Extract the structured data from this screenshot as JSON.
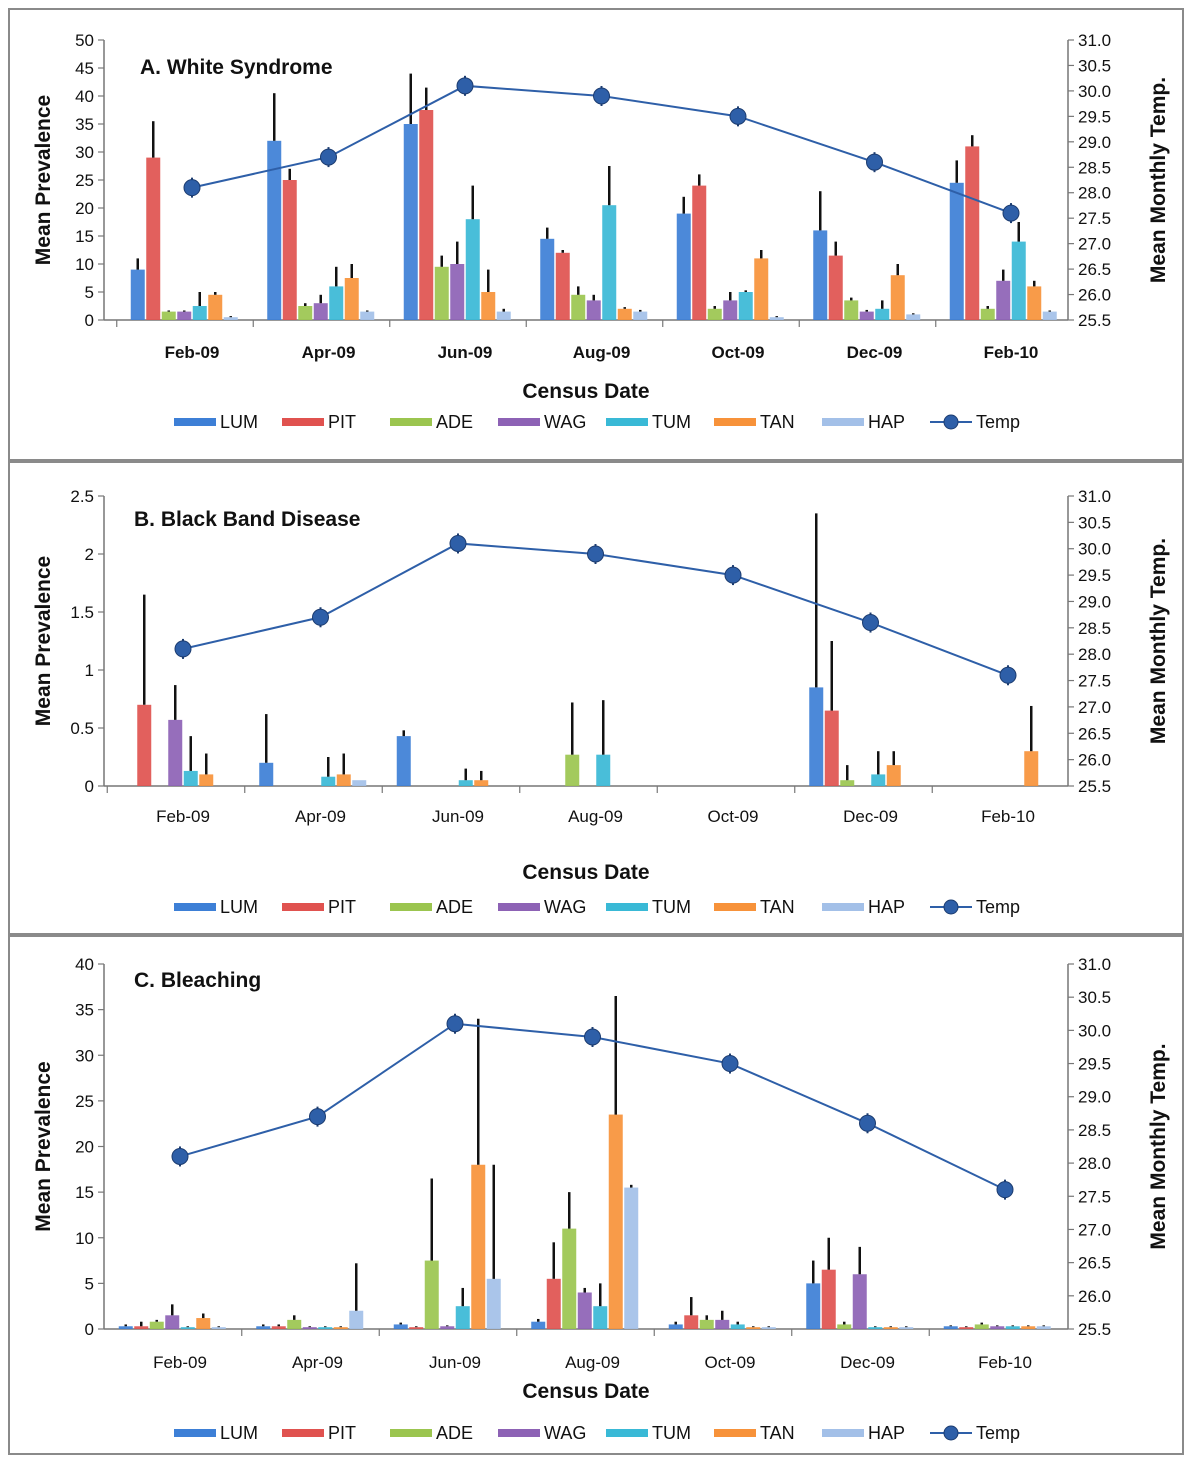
{
  "chart_data": [
    {
      "type": "bar",
      "title": "A. White Syndrome",
      "xlabel": "Census Date",
      "ylabel": "Mean Prevalence",
      "y2label": "Mean Monthly Temp.",
      "ylim": [
        0,
        50
      ],
      "yticks": [
        0,
        5,
        10,
        15,
        20,
        25,
        30,
        35,
        40,
        45,
        50
      ],
      "y2lim": [
        25.5,
        31.0
      ],
      "y2ticks": [
        "25.5",
        "26.0",
        "26.5",
        "27.0",
        "27.5",
        "28.0",
        "28.5",
        "29.0",
        "29.5",
        "30.0",
        "30.5",
        "31.0"
      ],
      "categories": [
        "Feb-09",
        "Apr-09",
        "Jun-09",
        "Aug-09",
        "Oct-09",
        "Dec-09",
        "Feb-10"
      ],
      "series": [
        {
          "name": "LUM",
          "color": "#3d7fd6",
          "values": [
            9,
            32,
            35,
            14.5,
            19,
            16,
            24.5
          ],
          "errors": [
            2,
            8.5,
            9,
            2,
            3,
            7,
            4
          ]
        },
        {
          "name": "PIT",
          "color": "#e0524f",
          "values": [
            29,
            25,
            37.5,
            12,
            24,
            11.5,
            31
          ],
          "errors": [
            6.5,
            2,
            4,
            0.5,
            2,
            2.5,
            2
          ]
        },
        {
          "name": "ADE",
          "color": "#9bc54f",
          "values": [
            1.5,
            2.5,
            9.5,
            4.5,
            2,
            3.5,
            2
          ],
          "errors": [
            0.2,
            0.5,
            2,
            1.5,
            0.5,
            0.5,
            0.5
          ]
        },
        {
          "name": "WAG",
          "color": "#8d62b5",
          "values": [
            1.5,
            3,
            10,
            3.5,
            3.5,
            1.5,
            7
          ],
          "errors": [
            0.2,
            1.5,
            4,
            1,
            1.5,
            0.3,
            2
          ]
        },
        {
          "name": "TUM",
          "color": "#39b9d6",
          "values": [
            2.5,
            6,
            18,
            20.5,
            5,
            2,
            14
          ],
          "errors": [
            2.5,
            3.5,
            6,
            7,
            0.3,
            1.5,
            3.5
          ]
        },
        {
          "name": "TAN",
          "color": "#f7923a",
          "values": [
            4.5,
            7.5,
            5,
            2,
            11,
            8,
            6
          ],
          "errors": [
            0.5,
            2.5,
            4,
            0.3,
            1.5,
            2,
            1
          ]
        },
        {
          "name": "HAP",
          "color": "#a3c0e8",
          "values": [
            0.5,
            1.5,
            1.5,
            1.5,
            0.5,
            1,
            1.5
          ],
          "errors": [
            0.2,
            0.2,
            0.5,
            0.3,
            0.2,
            0.2,
            0.2
          ]
        }
      ],
      "temp": {
        "name": "Temp",
        "color": "#2e5fa8",
        "values": [
          28.1,
          28.7,
          30.1,
          29.9,
          29.5,
          28.6,
          27.6
        ]
      },
      "legend": "bottom"
    },
    {
      "type": "bar",
      "title": "B. Black Band Disease",
      "xlabel": "Census Date",
      "ylabel": "Mean Prevalence",
      "y2label": "Mean Monthly Temp.",
      "ylim": [
        0,
        2.5
      ],
      "yticks": [
        "0",
        "0.5",
        "1",
        "1.5",
        "2",
        "2.5"
      ],
      "y2lim": [
        25.5,
        31.0
      ],
      "y2ticks": [
        "25.5",
        "26.0",
        "26.5",
        "27.0",
        "27.5",
        "28.0",
        "28.5",
        "29.0",
        "29.5",
        "30.0",
        "30.5",
        "31.0"
      ],
      "categories": [
        "Feb-09",
        "Apr-09",
        "Jun-09",
        "Aug-09",
        "Oct-09",
        "Dec-09",
        "Feb-10"
      ],
      "series": [
        {
          "name": "LUM",
          "color": "#3d7fd6",
          "values": [
            0,
            0.2,
            0.43,
            0,
            0,
            0.85,
            0
          ],
          "errors": [
            0,
            0.42,
            0.05,
            0,
            0,
            1.5,
            0
          ]
        },
        {
          "name": "PIT",
          "color": "#e0524f",
          "values": [
            0.7,
            0,
            0,
            0,
            0,
            0.65,
            0
          ],
          "errors": [
            0.95,
            0,
            0,
            0,
            0,
            0.6,
            0
          ]
        },
        {
          "name": "ADE",
          "color": "#9bc54f",
          "values": [
            0,
            0,
            0,
            0.27,
            0,
            0.05,
            0
          ],
          "errors": [
            0,
            0,
            0,
            0.45,
            0,
            0.13,
            0
          ]
        },
        {
          "name": "WAG",
          "color": "#8d62b5",
          "values": [
            0.57,
            0,
            0,
            0,
            0,
            0,
            0
          ],
          "errors": [
            0.3,
            0,
            0,
            0,
            0,
            0,
            0
          ]
        },
        {
          "name": "TUM",
          "color": "#39b9d6",
          "values": [
            0.13,
            0.08,
            0.05,
            0.27,
            0,
            0.1,
            0
          ],
          "errors": [
            0.3,
            0.17,
            0.1,
            0.47,
            0,
            0.2,
            0
          ]
        },
        {
          "name": "TAN",
          "color": "#f7923a",
          "values": [
            0.1,
            0.1,
            0.05,
            0,
            0,
            0.18,
            0.3
          ],
          "errors": [
            0.18,
            0.18,
            0.08,
            0,
            0,
            0.12,
            0.39
          ]
        },
        {
          "name": "HAP",
          "color": "#a3c0e8",
          "values": [
            0,
            0.05,
            0,
            0,
            0,
            0,
            0
          ],
          "errors": [
            0,
            0,
            0,
            0,
            0,
            0,
            0
          ]
        }
      ],
      "temp": {
        "name": "Temp",
        "color": "#2e5fa8",
        "values": [
          28.1,
          28.7,
          30.1,
          29.9,
          29.5,
          28.6,
          27.6
        ]
      },
      "legend": "bottom"
    },
    {
      "type": "bar",
      "title": "C. Bleaching",
      "xlabel": "Census Date",
      "ylabel": "Mean Prevalence",
      "y2label": "Mean Monthly Temp.",
      "ylim": [
        0,
        40
      ],
      "yticks": [
        0,
        5,
        10,
        15,
        20,
        25,
        30,
        35,
        40
      ],
      "y2lim": [
        25.5,
        31.0
      ],
      "y2ticks": [
        "25.5",
        "26.0",
        "26.5",
        "27.0",
        "27.5",
        "28.0",
        "28.5",
        "29.0",
        "29.5",
        "30.0",
        "30.5",
        "31.0"
      ],
      "categories": [
        "Feb-09",
        "Apr-09",
        "Jun-09",
        "Aug-09",
        "Oct-09",
        "Dec-09",
        "Feb-10"
      ],
      "series": [
        {
          "name": "LUM",
          "color": "#3d7fd6",
          "values": [
            0.3,
            0.3,
            0.5,
            0.8,
            0.5,
            5,
            0.3
          ],
          "errors": [
            0.2,
            0.2,
            0.2,
            0.3,
            0.3,
            2.5,
            0.1
          ]
        },
        {
          "name": "PIT",
          "color": "#e0524f",
          "values": [
            0.3,
            0.3,
            0.2,
            5.5,
            1.5,
            6.5,
            0.2
          ],
          "errors": [
            0.5,
            0.2,
            0.1,
            4,
            2,
            3.5,
            0.1
          ]
        },
        {
          "name": "ADE",
          "color": "#9bc54f",
          "values": [
            0.8,
            1,
            7.5,
            11,
            1,
            0.5,
            0.5
          ],
          "errors": [
            0.2,
            0.5,
            9,
            4,
            0.5,
            0.3,
            0.2
          ]
        },
        {
          "name": "WAG",
          "color": "#8d62b5",
          "values": [
            1.5,
            0.2,
            0.3,
            4,
            1,
            6,
            0.3
          ],
          "errors": [
            1.2,
            0.1,
            0.1,
            0.5,
            1,
            3,
            0.1
          ]
        },
        {
          "name": "TUM",
          "color": "#39b9d6",
          "values": [
            0.2,
            0.2,
            2.5,
            2.5,
            0.5,
            0.2,
            0.3
          ],
          "errors": [
            0.1,
            0.1,
            2,
            2.5,
            0.3,
            0.1,
            0.1
          ]
        },
        {
          "name": "TAN",
          "color": "#f7923a",
          "values": [
            1.2,
            0.2,
            18,
            23.5,
            0.2,
            0.2,
            0.3
          ],
          "errors": [
            0.5,
            0.1,
            16,
            13,
            0.1,
            0.1,
            0.1
          ]
        },
        {
          "name": "HAP",
          "color": "#a3c0e8",
          "values": [
            0.2,
            2,
            5.5,
            15.5,
            0.2,
            0.2,
            0.3
          ],
          "errors": [
            0.1,
            5.2,
            12.5,
            0.3,
            0.1,
            0.1,
            0.1
          ]
        }
      ],
      "temp": {
        "name": "Temp",
        "color": "#2e5fa8",
        "values": [
          28.1,
          28.7,
          30.1,
          29.9,
          29.5,
          28.6,
          27.6
        ]
      },
      "legend": "bottom"
    }
  ]
}
